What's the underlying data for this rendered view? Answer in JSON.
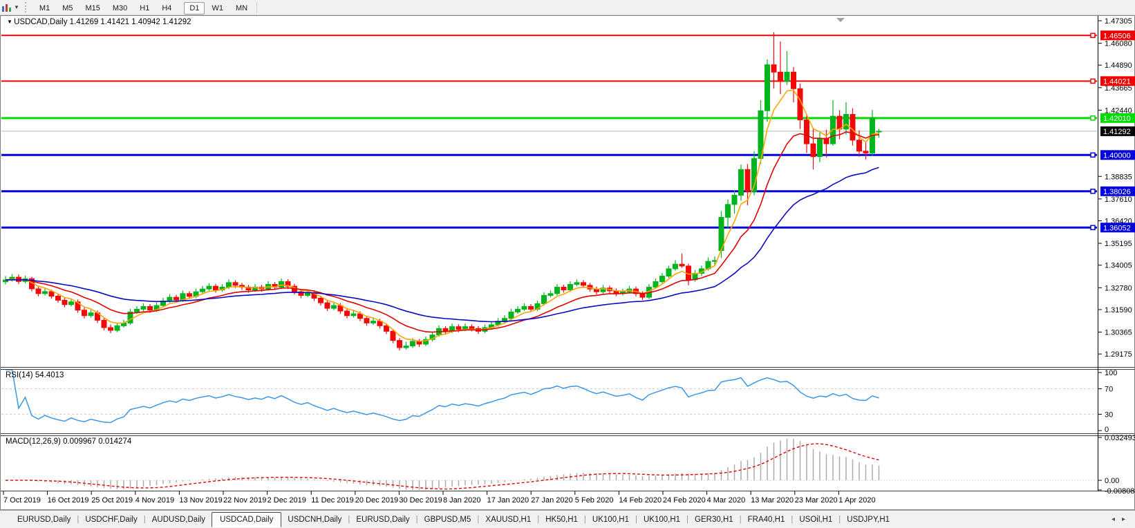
{
  "toolbar": {
    "chart_tool_icon": "chart-template-icon",
    "dropdown_icon": "chevron-down-icon",
    "timeframes": [
      {
        "label": "M1",
        "active": false
      },
      {
        "label": "M5",
        "active": false
      },
      {
        "label": "M15",
        "active": false
      },
      {
        "label": "M30",
        "active": false
      },
      {
        "label": "H1",
        "active": false
      },
      {
        "label": "H4",
        "active": false
      },
      {
        "label": "D1",
        "active": true
      },
      {
        "label": "W1",
        "active": false
      },
      {
        "label": "MN",
        "active": false
      }
    ]
  },
  "chart_header": {
    "collapse_icon": "triangle-down-icon",
    "symbol": "USDCAD,Daily",
    "ohlc": "1.41269 1.41421 1.40942 1.41292"
  },
  "chart_data": {
    "type": "candlestick",
    "symbol": "USDCAD",
    "timeframe": "Daily",
    "current_bar": {
      "open": 1.41269,
      "high": 1.41421,
      "low": 1.40942,
      "close": 1.41292
    },
    "up_color": "#00b41e",
    "down_color": "#f00a0a",
    "candles": [
      [
        1.331,
        1.3342,
        1.3296,
        1.332
      ],
      [
        1.332,
        1.3352,
        1.3312,
        1.3335
      ],
      [
        1.3335,
        1.335,
        1.3298,
        1.3312
      ],
      [
        1.3312,
        1.3344,
        1.3302,
        1.3327
      ],
      [
        1.3327,
        1.3337,
        1.3258,
        1.3272
      ],
      [
        1.3272,
        1.3285,
        1.3231,
        1.3246
      ],
      [
        1.3246,
        1.3274,
        1.3236,
        1.3257
      ],
      [
        1.3257,
        1.3267,
        1.3218,
        1.3232
      ],
      [
        1.3232,
        1.3247,
        1.3196,
        1.321
      ],
      [
        1.321,
        1.3225,
        1.3171,
        1.3186
      ],
      [
        1.3186,
        1.3218,
        1.3176,
        1.3201
      ],
      [
        1.3201,
        1.3214,
        1.3141,
        1.3156
      ],
      [
        1.3156,
        1.3171,
        1.3111,
        1.3126
      ],
      [
        1.3126,
        1.3158,
        1.3116,
        1.3141
      ],
      [
        1.3141,
        1.3154,
        1.3086,
        1.3101
      ],
      [
        1.3101,
        1.3114,
        1.3046,
        1.3061
      ],
      [
        1.3061,
        1.3078,
        1.3031,
        1.3046
      ],
      [
        1.3046,
        1.3088,
        1.3036,
        1.3071
      ],
      [
        1.3071,
        1.3103,
        1.3061,
        1.3086
      ],
      [
        1.3086,
        1.3163,
        1.3076,
        1.3146
      ],
      [
        1.3146,
        1.3178,
        1.3136,
        1.3161
      ],
      [
        1.3161,
        1.3193,
        1.3151,
        1.3176
      ],
      [
        1.3176,
        1.3189,
        1.3141,
        1.3156
      ],
      [
        1.3156,
        1.3198,
        1.3146,
        1.3181
      ],
      [
        1.3181,
        1.3223,
        1.3171,
        1.3206
      ],
      [
        1.3206,
        1.3243,
        1.3196,
        1.3226
      ],
      [
        1.3226,
        1.3239,
        1.3196,
        1.3211
      ],
      [
        1.3211,
        1.3263,
        1.3201,
        1.3246
      ],
      [
        1.3246,
        1.3259,
        1.3216,
        1.3231
      ],
      [
        1.3231,
        1.3273,
        1.3221,
        1.3256
      ],
      [
        1.3256,
        1.3288,
        1.3246,
        1.3271
      ],
      [
        1.3271,
        1.3303,
        1.3261,
        1.3286
      ],
      [
        1.3286,
        1.3299,
        1.3251,
        1.3266
      ],
      [
        1.3266,
        1.3298,
        1.3256,
        1.3281
      ],
      [
        1.3281,
        1.3323,
        1.3271,
        1.3306
      ],
      [
        1.3306,
        1.3319,
        1.3276,
        1.3291
      ],
      [
        1.3291,
        1.3304,
        1.3266,
        1.3281
      ],
      [
        1.3281,
        1.3294,
        1.3251,
        1.3266
      ],
      [
        1.3266,
        1.3298,
        1.3256,
        1.3281
      ],
      [
        1.3281,
        1.3294,
        1.3256,
        1.3271
      ],
      [
        1.3271,
        1.3313,
        1.3261,
        1.3296
      ],
      [
        1.3296,
        1.3309,
        1.3266,
        1.3281
      ],
      [
        1.3281,
        1.3328,
        1.3271,
        1.3311
      ],
      [
        1.3311,
        1.3324,
        1.3271,
        1.3286
      ],
      [
        1.3286,
        1.3299,
        1.3241,
        1.3256
      ],
      [
        1.3256,
        1.3269,
        1.3221,
        1.3236
      ],
      [
        1.3236,
        1.3268,
        1.3226,
        1.3251
      ],
      [
        1.3251,
        1.3264,
        1.3206,
        1.3221
      ],
      [
        1.3221,
        1.3234,
        1.3181,
        1.3196
      ],
      [
        1.3196,
        1.3209,
        1.3151,
        1.3166
      ],
      [
        1.3166,
        1.3198,
        1.3156,
        1.3181
      ],
      [
        1.3181,
        1.3194,
        1.3136,
        1.3151
      ],
      [
        1.3151,
        1.3164,
        1.3111,
        1.3126
      ],
      [
        1.3126,
        1.3158,
        1.3116,
        1.3136
      ],
      [
        1.3136,
        1.3149,
        1.3096,
        1.3111
      ],
      [
        1.3111,
        1.3124,
        1.3071,
        1.3086
      ],
      [
        1.3086,
        1.3118,
        1.3076,
        1.3096
      ],
      [
        1.3096,
        1.3109,
        1.3056,
        1.3071
      ],
      [
        1.3071,
        1.3084,
        1.3026,
        1.3041
      ],
      [
        1.3041,
        1.3054,
        1.2976,
        1.2991
      ],
      [
        1.2991,
        1.3004,
        1.2937,
        1.2952
      ],
      [
        1.2952,
        1.2984,
        1.2942,
        1.2961
      ],
      [
        1.2961,
        1.3003,
        1.2951,
        1.2986
      ],
      [
        1.2986,
        1.2999,
        1.2956,
        1.2971
      ],
      [
        1.2971,
        1.3013,
        1.2961,
        1.2996
      ],
      [
        1.2996,
        1.3038,
        1.2986,
        1.3021
      ],
      [
        1.3021,
        1.3073,
        1.3011,
        1.3056
      ],
      [
        1.3056,
        1.3069,
        1.3026,
        1.3041
      ],
      [
        1.3041,
        1.3083,
        1.3031,
        1.3066
      ],
      [
        1.3066,
        1.3079,
        1.3036,
        1.3051
      ],
      [
        1.3051,
        1.3083,
        1.3041,
        1.3066
      ],
      [
        1.3066,
        1.3079,
        1.3041,
        1.3056
      ],
      [
        1.3056,
        1.3069,
        1.3026,
        1.3041
      ],
      [
        1.3041,
        1.3078,
        1.3031,
        1.3061
      ],
      [
        1.3061,
        1.3093,
        1.3051,
        1.3076
      ],
      [
        1.3076,
        1.3113,
        1.3066,
        1.3096
      ],
      [
        1.3096,
        1.3128,
        1.3086,
        1.3111
      ],
      [
        1.3111,
        1.3163,
        1.3101,
        1.3146
      ],
      [
        1.3146,
        1.3178,
        1.3136,
        1.3161
      ],
      [
        1.3161,
        1.3193,
        1.3151,
        1.3176
      ],
      [
        1.3176,
        1.3189,
        1.3146,
        1.3161
      ],
      [
        1.3161,
        1.3208,
        1.3151,
        1.3191
      ],
      [
        1.3191,
        1.3253,
        1.3181,
        1.3236
      ],
      [
        1.3236,
        1.3263,
        1.3226,
        1.3246
      ],
      [
        1.3246,
        1.3298,
        1.3236,
        1.3281
      ],
      [
        1.3281,
        1.3294,
        1.3251,
        1.3266
      ],
      [
        1.3266,
        1.3313,
        1.3256,
        1.3296
      ],
      [
        1.3296,
        1.3323,
        1.3286,
        1.3306
      ],
      [
        1.3306,
        1.3319,
        1.3276,
        1.3291
      ],
      [
        1.3291,
        1.3304,
        1.3256,
        1.3271
      ],
      [
        1.3271,
        1.3284,
        1.3241,
        1.3256
      ],
      [
        1.3256,
        1.3293,
        1.3246,
        1.3276
      ],
      [
        1.3276,
        1.3289,
        1.3246,
        1.3261
      ],
      [
        1.3261,
        1.3274,
        1.3231,
        1.3246
      ],
      [
        1.3246,
        1.3273,
        1.3236,
        1.3256
      ],
      [
        1.3256,
        1.3288,
        1.3246,
        1.3271
      ],
      [
        1.3271,
        1.3284,
        1.3231,
        1.3246
      ],
      [
        1.3246,
        1.3259,
        1.3211,
        1.3226
      ],
      [
        1.3226,
        1.3298,
        1.3216,
        1.3281
      ],
      [
        1.3281,
        1.3328,
        1.3271,
        1.3311
      ],
      [
        1.3311,
        1.3358,
        1.3301,
        1.3341
      ],
      [
        1.3341,
        1.3398,
        1.3331,
        1.3381
      ],
      [
        1.3381,
        1.3428,
        1.3371,
        1.3406
      ],
      [
        1.3406,
        1.3464,
        1.3386,
        1.3396
      ],
      [
        1.3396,
        1.3409,
        1.3291,
        1.3321
      ],
      [
        1.3321,
        1.3373,
        1.3311,
        1.3356
      ],
      [
        1.3356,
        1.3398,
        1.3341,
        1.3381
      ],
      [
        1.3381,
        1.3443,
        1.3371,
        1.3421
      ],
      [
        1.3421,
        1.3448,
        1.3401,
        1.3426
      ],
      [
        1.348,
        1.3695,
        1.344,
        1.3661
      ],
      [
        1.3661,
        1.3758,
        1.3601,
        1.3731
      ],
      [
        1.3731,
        1.3808,
        1.3681,
        1.3781
      ],
      [
        1.3781,
        1.3948,
        1.3751,
        1.3921
      ],
      [
        1.3921,
        1.3951,
        1.3727,
        1.3801
      ],
      [
        1.3801,
        1.4021,
        1.3781,
        1.3981
      ],
      [
        1.3981,
        1.4298,
        1.3951,
        1.4241
      ],
      [
        1.4241,
        1.452,
        1.4181,
        1.4491
      ],
      [
        1.4491,
        1.4668,
        1.4361,
        1.4451
      ],
      [
        1.4451,
        1.4617,
        1.4331,
        1.4401
      ],
      [
        1.4401,
        1.4565,
        1.4381,
        1.4451
      ],
      [
        1.4451,
        1.4478,
        1.4286,
        1.4361
      ],
      [
        1.4361,
        1.4388,
        1.4141,
        1.4191
      ],
      [
        1.4191,
        1.4224,
        1.4011,
        1.4061
      ],
      [
        1.4061,
        1.4148,
        1.3921,
        1.3991
      ],
      [
        1.3991,
        1.4128,
        1.3961,
        1.4091
      ],
      [
        1.4091,
        1.4138,
        1.3987,
        1.4061
      ],
      [
        1.4061,
        1.4298,
        1.4051,
        1.4211
      ],
      [
        1.4211,
        1.4244,
        1.4086,
        1.4141
      ],
      [
        1.4141,
        1.4288,
        1.4111,
        1.4221
      ],
      [
        1.4221,
        1.4254,
        1.4051,
        1.4081
      ],
      [
        1.4081,
        1.4134,
        1.3991,
        1.4021
      ],
      [
        1.4021,
        1.4074,
        1.3976,
        1.4011
      ],
      [
        1.4011,
        1.4245,
        1.3996,
        1.4201
      ],
      [
        1.41269,
        1.41421,
        1.40942,
        1.41292
      ]
    ],
    "date_ticks": [
      "7 Oct 2019",
      "16 Oct 2019",
      "25 Oct 2019",
      "4 Nov 2019",
      "13 Nov 2019",
      "22 Nov 2019",
      "2 Dec 2019",
      "11 Dec 2019",
      "20 Dec 2019",
      "30 Dec 2019",
      "8 Jan 2020",
      "17 Jan 2020",
      "27 Jan 2020",
      "5 Feb 2020",
      "14 Feb 2020",
      "24 Feb 2020",
      "4 Mar 2020",
      "13 Mar 2020",
      "23 Mar 2020",
      "1 Apr 2020"
    ],
    "price_axis_ticks": [
      "1.47305",
      "1.46080",
      "1.44890",
      "1.43665",
      "1.42440",
      "1.38835",
      "1.37610",
      "1.36420",
      "1.35195",
      "1.34005",
      "1.32780",
      "1.31590",
      "1.30365",
      "1.29175"
    ],
    "hlines": [
      {
        "price": 1.46506,
        "label": "1.46506",
        "color": "#ee0000",
        "width": 2
      },
      {
        "price": 1.44021,
        "label": "1.44021",
        "color": "#ee0000",
        "width": 2
      },
      {
        "price": 1.4201,
        "label": "1.42010",
        "color": "#00dc00",
        "width": 3
      },
      {
        "price": 1.4,
        "label": "1.40000",
        "color": "#0000dc",
        "width": 3
      },
      {
        "price": 1.38026,
        "label": "1.38026",
        "color": "#0000dc",
        "width": 3
      },
      {
        "price": 1.36052,
        "label": "1.36052",
        "color": "#0000dc",
        "width": 3
      }
    ],
    "current_price": {
      "value": 1.41292,
      "label": "1.41292",
      "line_color": "#b4b4b4",
      "badge_color": "#000000"
    },
    "ma_lines": [
      {
        "name": "fast-ma",
        "method": "ema",
        "period": 5,
        "color": "#ffa500"
      },
      {
        "name": "medium-ma",
        "method": "ema",
        "period": 13,
        "color": "#e00000"
      },
      {
        "name": "slow-ma",
        "method": "ema",
        "period": 34,
        "color": "#0a0ac0"
      }
    ],
    "indicators": {
      "rsi": {
        "label": "RSI(14)",
        "value": "54.4013",
        "period": 14,
        "levels": [
          70,
          30
        ],
        "axis_labels": [
          "100",
          "70",
          "30",
          "0"
        ],
        "line_color": "#3c96e6",
        "level_color": "#c8c8c8"
      },
      "macd": {
        "label": "MACD(12,26,9)",
        "main_value": "0.009967",
        "signal_value": "0.014274",
        "fast": 12,
        "slow": 26,
        "signal": 9,
        "axis_labels": [
          "0.032493",
          "0.00",
          "-0.008086"
        ],
        "histogram_color": "#ababab",
        "signal_color": "#e00000"
      }
    }
  },
  "bottom_tabs": {
    "tabs": [
      {
        "label": "EURUSD,Daily",
        "active": false
      },
      {
        "label": "USDCHF,Daily",
        "active": false
      },
      {
        "label": "AUDUSD,Daily",
        "active": false
      },
      {
        "label": "USDCAD,Daily",
        "active": true
      },
      {
        "label": "USDCNH,Daily",
        "active": false
      },
      {
        "label": "EURUSD,Daily",
        "active": false
      },
      {
        "label": "GBPUSD,M5",
        "active": false
      },
      {
        "label": "XAUUSD,H1",
        "active": false
      },
      {
        "label": "HK50,H1",
        "active": false
      },
      {
        "label": "UK100,H1",
        "active": false
      },
      {
        "label": "UK100,H1",
        "active": false
      },
      {
        "label": "GER30,H1",
        "active": false
      },
      {
        "label": "FRA40,H1",
        "active": false
      },
      {
        "label": "USOil,H1",
        "active": false
      },
      {
        "label": "USDJPY,H1",
        "active": false
      }
    ],
    "scroll_left_icon": "◂",
    "scroll_right_icon": "▸"
  }
}
